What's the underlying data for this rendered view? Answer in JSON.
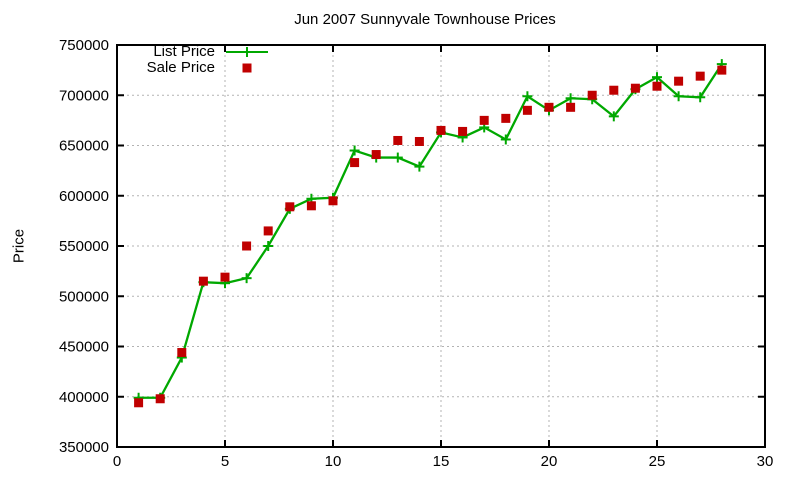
{
  "chart_data": {
    "type": "line",
    "title": "Jun 2007 Sunnyvale Townhouse Prices",
    "xlabel": "",
    "ylabel": "Price",
    "x": [
      1,
      2,
      3,
      4,
      5,
      6,
      7,
      8,
      9,
      10,
      11,
      12,
      13,
      14,
      15,
      16,
      17,
      18,
      19,
      20,
      21,
      22,
      23,
      24,
      25,
      26,
      27,
      28
    ],
    "series": [
      {
        "name": "List Price",
        "color": "#00A800",
        "style": "line-with-plus-markers",
        "values": [
          399000,
          399000,
          439000,
          514000,
          513000,
          518000,
          550000,
          587000,
          597000,
          598000,
          645000,
          638000,
          638000,
          629000,
          663000,
          658000,
          668000,
          656000,
          699000,
          685000,
          697000,
          696000,
          679000,
          706000,
          718000,
          699000,
          698000,
          731000
        ]
      },
      {
        "name": "Sale Price",
        "color": "#C00000",
        "style": "square-points",
        "values": [
          394000,
          398000,
          444000,
          515000,
          519000,
          550000,
          565000,
          589000,
          590000,
          595000,
          633000,
          641000,
          655000,
          654000,
          665000,
          664000,
          675000,
          677000,
          685000,
          688000,
          688000,
          700000,
          705000,
          707000,
          709000,
          714000,
          719000,
          725000
        ]
      }
    ],
    "xlim": [
      0,
      30
    ],
    "ylim": [
      350000,
      750000
    ],
    "xticks": [
      0,
      5,
      10,
      15,
      20,
      25,
      30
    ],
    "yticks": [
      350000,
      400000,
      450000,
      500000,
      550000,
      600000,
      650000,
      700000,
      750000
    ],
    "grid": true,
    "legend_position": "top-left-inside",
    "grid_color": "#b3b3b3",
    "axis_color": "#000000",
    "background_color": "#ffffff"
  }
}
